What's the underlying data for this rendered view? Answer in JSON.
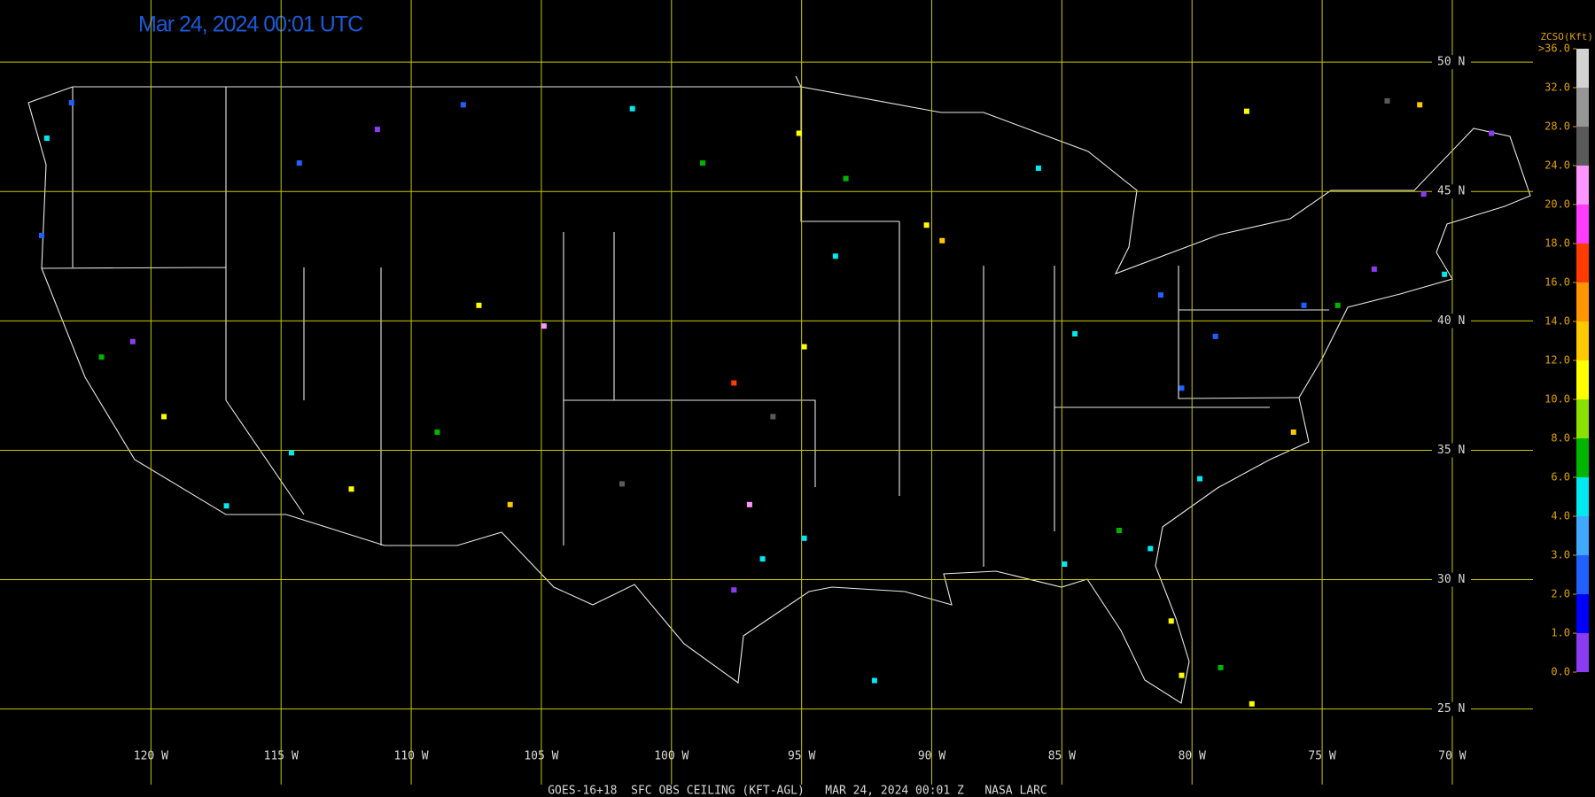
{
  "chart_data": {
    "type": "station-map",
    "title": "Mar 24, 2024 00:01 UTC",
    "footer": "GOES-16+18  SFC OBS CEILING (KFT-AGL)   MAR 24, 2024 00:01 Z   NASA LARC",
    "xlim": [
      -125.8,
      -66.9
    ],
    "ylim": [
      21.6,
      52.4
    ],
    "xticks": [
      {
        "value": -120,
        "label": "120 W"
      },
      {
        "value": -115,
        "label": "115 W"
      },
      {
        "value": -110,
        "label": "110 W"
      },
      {
        "value": -105,
        "label": "105 W"
      },
      {
        "value": -100,
        "label": "100 W"
      },
      {
        "value": -95,
        "label": "95 W"
      },
      {
        "value": -90,
        "label": "90 W"
      },
      {
        "value": -85,
        "label": "85 W"
      },
      {
        "value": -80,
        "label": "80 W"
      },
      {
        "value": -75,
        "label": "75 W"
      },
      {
        "value": -70,
        "label": "70 W"
      }
    ],
    "yticks": [
      {
        "value": 25,
        "label": "25 N"
      },
      {
        "value": 30,
        "label": "30 N"
      },
      {
        "value": 35,
        "label": "35 N"
      },
      {
        "value": 40,
        "label": "40 N"
      },
      {
        "value": 45,
        "label": "45 N"
      },
      {
        "value": 50,
        "label": "50 N"
      }
    ],
    "grid": true,
    "grid_color": "#c8c800",
    "colorbar": {
      "title": "ZCSO(Kft)",
      "ticks": [
        {
          "value": 0,
          "label": "0.0"
        },
        {
          "value": 1,
          "label": "1.0"
        },
        {
          "value": 2,
          "label": "2.0"
        },
        {
          "value": 3,
          "label": "3.0"
        },
        {
          "value": 4,
          "label": "4.0"
        },
        {
          "value": 6,
          "label": "6.0"
        },
        {
          "value": 8,
          "label": "8.0"
        },
        {
          "value": 10,
          "label": "10.0"
        },
        {
          "value": 12,
          "label": "12.0"
        },
        {
          "value": 14,
          "label": "14.0"
        },
        {
          "value": 16,
          "label": "16.0"
        },
        {
          "value": 18,
          "label": "18.0"
        },
        {
          "value": 20,
          "label": "20.0"
        },
        {
          "value": 24,
          "label": "24.0"
        },
        {
          "value": 28,
          "label": "28.0"
        },
        {
          "value": 32,
          "label": "32.0"
        },
        {
          "value": 36,
          "label": ">36.0"
        }
      ],
      "colors": [
        "#8c3cf0",
        "#0000ff",
        "#2060ff",
        "#40a8ff",
        "#00e8f0",
        "#00b400",
        "#8ce000",
        "#ffff00",
        "#ffc800",
        "#ff9600",
        "#ff3c00",
        "#ff3cff",
        "#ff96ff",
        "#5a5a5a",
        "#969696",
        "#d2d2d2"
      ]
    },
    "stations": {
      "lon": [
        -123.05,
        -124.0,
        -124.2,
        -120.7,
        -121.9,
        -119.5,
        -117.1,
        -114.6,
        -112.3,
        -106.2,
        -104.9,
        -107.4,
        -109.0,
        -114.3,
        -111.3,
        -108.0,
        -101.5,
        -98.8,
        -95.1,
        -93.3,
        -93.7,
        -94.9,
        -97.6,
        -96.1,
        -101.9,
        -97.0,
        -94.9,
        -96.5,
        -97.6,
        -92.2,
        -90.2,
        -89.6,
        -85.9,
        -84.5,
        -81.2,
        -79.1,
        -80.4,
        -75.7,
        -74.4,
        -73.0,
        -70.3,
        -71.1,
        -68.5,
        -76.1,
        -79.7,
        -82.8,
        -81.6,
        -80.8,
        -80.4,
        -77.7,
        -77.9,
        -72.5,
        -71.25,
        -78.9,
        -84.9
      ],
      "lat": [
        48.43,
        47.06,
        43.3,
        39.2,
        38.6,
        36.3,
        32.85,
        34.9,
        33.5,
        32.9,
        39.8,
        40.6,
        35.7,
        46.1,
        47.4,
        48.35,
        48.2,
        46.1,
        47.25,
        45.5,
        42.5,
        39.0,
        37.6,
        36.3,
        33.7,
        32.9,
        31.6,
        30.8,
        29.6,
        26.1,
        43.7,
        43.1,
        45.9,
        39.5,
        41.0,
        39.4,
        37.4,
        40.6,
        40.6,
        42.0,
        41.8,
        44.9,
        47.25,
        35.7,
        33.9,
        31.9,
        31.2,
        28.4,
        26.3,
        25.2,
        48.1,
        48.5,
        48.35,
        26.6,
        30.6
      ],
      "ceiling": [
        2.5,
        5,
        2.5,
        0.5,
        7,
        11,
        5,
        5,
        11,
        13,
        22,
        11,
        7,
        2.5,
        0.5,
        2.5,
        5,
        7,
        11,
        7,
        5,
        11,
        17,
        26,
        26,
        22,
        5,
        5,
        0.5,
        5,
        11,
        13,
        5,
        5,
        2.5,
        2.5,
        2.5,
        2.5,
        7,
        0.5,
        5,
        0.5,
        0.5,
        13,
        5,
        7,
        5,
        11,
        11,
        11,
        11,
        26,
        13,
        7,
        5
      ]
    }
  }
}
